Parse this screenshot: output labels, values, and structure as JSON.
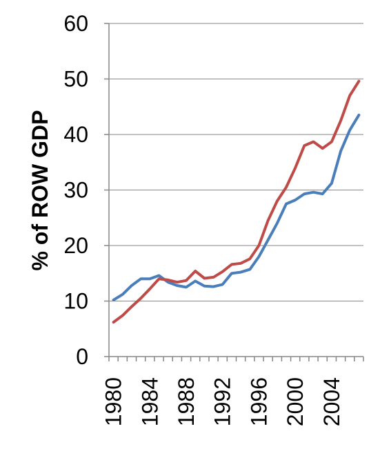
{
  "chart_data": {
    "type": "line",
    "title": "",
    "xlabel": "",
    "ylabel": "% of ROW GDP",
    "ylim": [
      0,
      60
    ],
    "yticks": [
      "0",
      "10",
      "20",
      "30",
      "40",
      "50",
      "60"
    ],
    "xtick_labels": [
      "1980",
      "1984",
      "1988",
      "1992",
      "1996",
      "2000",
      "2004"
    ],
    "x": [
      1980,
      1981,
      1982,
      1983,
      1984,
      1985,
      1986,
      1987,
      1988,
      1989,
      1990,
      1991,
      1992,
      1993,
      1994,
      1995,
      1996,
      1997,
      1998,
      1999,
      2000,
      2001,
      2002,
      2003,
      2004,
      2005,
      2006,
      2007
    ],
    "grid": "horizontal",
    "legend": "none",
    "series": [
      {
        "color": "#4a7ebb",
        "values": [
          10.2,
          11.2,
          12.8,
          14.0,
          14.0,
          14.6,
          13.4,
          12.8,
          12.5,
          13.6,
          12.7,
          12.6,
          13.0,
          15.0,
          15.2,
          15.7,
          18.0,
          21.0,
          24.0,
          27.5,
          28.2,
          29.3,
          29.6,
          29.3,
          31.2,
          37.0,
          40.8,
          43.5
        ]
      },
      {
        "color": "#be4b48",
        "values": [
          6.2,
          7.4,
          9.0,
          10.5,
          12.2,
          14.0,
          13.8,
          13.4,
          13.7,
          15.4,
          14.1,
          14.3,
          15.3,
          16.6,
          16.8,
          17.6,
          20.0,
          24.5,
          28.0,
          30.5,
          34.0,
          38.0,
          38.7,
          37.5,
          38.7,
          42.5,
          47.0,
          49.6
        ]
      }
    ]
  }
}
